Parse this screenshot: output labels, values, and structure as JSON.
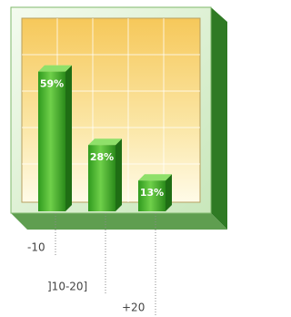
{
  "chart_data": {
    "type": "bar",
    "categories": [
      "-10",
      "]10-20]",
      "+20"
    ],
    "values": [
      59,
      28,
      13
    ],
    "value_labels": [
      "59%",
      "28%",
      "13%"
    ],
    "color": "#3fae2a"
  }
}
